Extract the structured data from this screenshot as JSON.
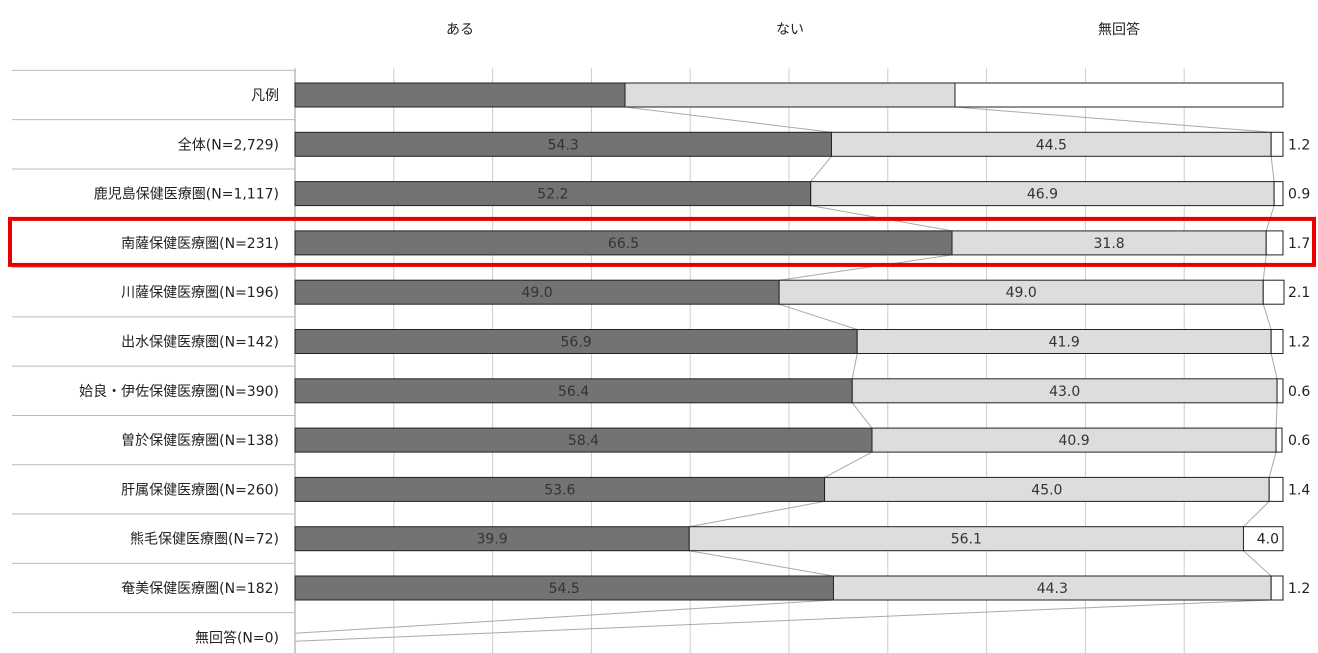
{
  "chart_data": {
    "type": "bar",
    "stacked": true,
    "orientation": "horizontal",
    "normalized_to": 100,
    "legend": {
      "placement": "top",
      "entries": [
        "ある",
        "ない",
        "無回答"
      ]
    },
    "legend_row_label": "凡例",
    "categories": [
      "全体(N=2,729)",
      "鹿児島保健医療圏(N=1,117)",
      "南薩保健医療圏(N=231)",
      "川薩保健医療圏(N=196)",
      "出水保健医療圏(N=142)",
      "姶良・伊佐保健医療圏(N=390)",
      "曽於保健医療圏(N=138)",
      "肝属保健医療圏(N=260)",
      "熊毛保健医療圏(N=72)",
      "奄美保健医療圏(N=182)",
      "無回答(N=0)"
    ],
    "series": [
      {
        "name": "ある",
        "values": [
          54.3,
          52.2,
          66.5,
          49.0,
          56.9,
          56.4,
          58.4,
          53.6,
          39.9,
          54.5,
          null
        ]
      },
      {
        "name": "ない",
        "values": [
          44.5,
          46.9,
          31.8,
          49.0,
          41.9,
          43.0,
          40.9,
          45.0,
          56.1,
          44.3,
          null
        ]
      },
      {
        "name": "無回答",
        "values": [
          1.2,
          0.9,
          1.7,
          2.1,
          1.2,
          0.6,
          0.6,
          1.4,
          4.0,
          1.2,
          null
        ]
      }
    ],
    "value_labels": [
      [
        "54.3",
        "44.5",
        "1.2"
      ],
      [
        "52.2",
        "46.9",
        "0.9"
      ],
      [
        "66.5",
        "31.8",
        "1.7"
      ],
      [
        "49.0",
        "49.0",
        "2.1"
      ],
      [
        "56.9",
        "41.9",
        "1.2"
      ],
      [
        "56.4",
        "43.0",
        "0.6"
      ],
      [
        "58.4",
        "40.9",
        "0.6"
      ],
      [
        "53.6",
        "45.0",
        "1.4"
      ],
      [
        "39.9",
        "56.1",
        "4.0"
      ],
      [
        "54.5",
        "44.3",
        "1.2"
      ],
      [
        "",
        "",
        ""
      ]
    ],
    "highlighted_category": "南薩保健医療圏(N=231)",
    "xlim": [
      0,
      100
    ],
    "grid": true,
    "colors": {
      "series": [
        "#737373",
        "#dddddd",
        "#ffffff"
      ],
      "bar_stroke": "#222222",
      "grid": "#cccccc",
      "connector": "#aaaaaa",
      "highlight": "#e60000"
    }
  }
}
